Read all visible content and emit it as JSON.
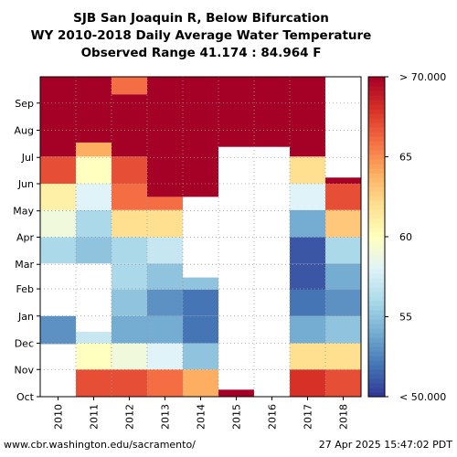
{
  "chart_data": {
    "type": "heatmap",
    "title_lines": [
      "SJB San Joaquin R, Below Bifurcation",
      "WY 2010-2018 Daily Average Water Temperature",
      "Observed Range 41.174 : 84.964 F"
    ],
    "x_categories": [
      "2010",
      "2011",
      "2012",
      "2013",
      "2014",
      "2015",
      "2016",
      "2017",
      "2018"
    ],
    "y_months": [
      "Oct",
      "Nov",
      "Dec",
      "Jan",
      "Feb",
      "Mar",
      "Apr",
      "May",
      "Jun",
      "Jul",
      "Aug",
      "Sep"
    ],
    "colorbar": {
      "min": 50,
      "max": 70,
      "tick_values": [
        55,
        60,
        65
      ],
      "tick_labels": [
        "55",
        "60",
        "65"
      ],
      "min_label": "< 50.000",
      "max_label": "> 70.000",
      "colors": [
        "#313695",
        "#4575b4",
        "#74add1",
        "#abd9e9",
        "#e0f3f8",
        "#ffffbf",
        "#fee090",
        "#fdae61",
        "#f46d43",
        "#d73027",
        "#a50026"
      ]
    },
    "series": [
      {
        "name": "2010",
        "segments": [
          {
            "from_day": 0,
            "to_day": 60,
            "value": null
          },
          {
            "from_day": 60,
            "to_day": 92,
            "value": 53
          },
          {
            "from_day": 92,
            "to_day": 152,
            "value": null
          },
          {
            "from_day": 152,
            "to_day": 182,
            "value": 56
          },
          {
            "from_day": 182,
            "to_day": 213,
            "value": 59
          },
          {
            "from_day": 213,
            "to_day": 243,
            "value": 61
          },
          {
            "from_day": 243,
            "to_day": 274,
            "value": 67
          },
          {
            "from_day": 274,
            "to_day": 365,
            "value": 72
          }
        ]
      },
      {
        "name": "2011",
        "segments": [
          {
            "from_day": 0,
            "to_day": 31,
            "value": 67
          },
          {
            "from_day": 31,
            "to_day": 61,
            "value": 60
          },
          {
            "from_day": 61,
            "to_day": 74,
            "value": 57
          },
          {
            "from_day": 74,
            "to_day": 152,
            "value": null
          },
          {
            "from_day": 152,
            "to_day": 182,
            "value": 55
          },
          {
            "from_day": 182,
            "to_day": 213,
            "value": 56
          },
          {
            "from_day": 213,
            "to_day": 243,
            "value": 58
          },
          {
            "from_day": 243,
            "to_day": 274,
            "value": 60
          },
          {
            "from_day": 274,
            "to_day": 290,
            "value": 64
          },
          {
            "from_day": 290,
            "to_day": 365,
            "value": 72
          }
        ]
      },
      {
        "name": "2012",
        "segments": [
          {
            "from_day": 0,
            "to_day": 31,
            "value": 67
          },
          {
            "from_day": 31,
            "to_day": 61,
            "value": 59
          },
          {
            "from_day": 61,
            "to_day": 92,
            "value": 54
          },
          {
            "from_day": 92,
            "to_day": 122,
            "value": 55
          },
          {
            "from_day": 122,
            "to_day": 152,
            "value": 56
          },
          {
            "from_day": 152,
            "to_day": 182,
            "value": 56
          },
          {
            "from_day": 182,
            "to_day": 213,
            "value": 62
          },
          {
            "from_day": 213,
            "to_day": 243,
            "value": 66
          },
          {
            "from_day": 243,
            "to_day": 274,
            "value": 67
          },
          {
            "from_day": 274,
            "to_day": 345,
            "value": 72
          },
          {
            "from_day": 345,
            "to_day": 365,
            "value": 66
          }
        ]
      },
      {
        "name": "2013",
        "segments": [
          {
            "from_day": 0,
            "to_day": 31,
            "value": 66
          },
          {
            "from_day": 31,
            "to_day": 61,
            "value": 58
          },
          {
            "from_day": 61,
            "to_day": 92,
            "value": 54
          },
          {
            "from_day": 92,
            "to_day": 122,
            "value": 53
          },
          {
            "from_day": 122,
            "to_day": 152,
            "value": 55
          },
          {
            "from_day": 152,
            "to_day": 182,
            "value": 57
          },
          {
            "from_day": 182,
            "to_day": 213,
            "value": 62
          },
          {
            "from_day": 213,
            "to_day": 228,
            "value": 66
          },
          {
            "from_day": 228,
            "to_day": 365,
            "value": 72
          }
        ]
      },
      {
        "name": "2014",
        "segments": [
          {
            "from_day": 0,
            "to_day": 31,
            "value": 64
          },
          {
            "from_day": 31,
            "to_day": 61,
            "value": 55
          },
          {
            "from_day": 61,
            "to_day": 92,
            "value": 52
          },
          {
            "from_day": 92,
            "to_day": 122,
            "value": 52
          },
          {
            "from_day": 122,
            "to_day": 136,
            "value": 55
          },
          {
            "from_day": 136,
            "to_day": 228,
            "value": null
          },
          {
            "from_day": 228,
            "to_day": 243,
            "value": 70
          },
          {
            "from_day": 243,
            "to_day": 365,
            "value": 72
          }
        ]
      },
      {
        "name": "2015",
        "segments": [
          {
            "from_day": 0,
            "to_day": 8,
            "value": 72
          },
          {
            "from_day": 8,
            "to_day": 285,
            "value": null
          },
          {
            "from_day": 285,
            "to_day": 365,
            "value": 72
          }
        ]
      },
      {
        "name": "2016",
        "segments": [
          {
            "from_day": 0,
            "to_day": 285,
            "value": null
          },
          {
            "from_day": 285,
            "to_day": 365,
            "value": 72
          }
        ]
      },
      {
        "name": "2017",
        "segments": [
          {
            "from_day": 0,
            "to_day": 31,
            "value": 68
          },
          {
            "from_day": 31,
            "to_day": 61,
            "value": 62
          },
          {
            "from_day": 61,
            "to_day": 92,
            "value": 54
          },
          {
            "from_day": 92,
            "to_day": 122,
            "value": 52
          },
          {
            "from_day": 122,
            "to_day": 152,
            "value": 51
          },
          {
            "from_day": 152,
            "to_day": 182,
            "value": 51
          },
          {
            "from_day": 182,
            "to_day": 213,
            "value": 54
          },
          {
            "from_day": 213,
            "to_day": 243,
            "value": 58
          },
          {
            "from_day": 243,
            "to_day": 274,
            "value": 62
          },
          {
            "from_day": 274,
            "to_day": 365,
            "value": 72
          }
        ]
      },
      {
        "name": "2018",
        "segments": [
          {
            "from_day": 0,
            "to_day": 31,
            "value": 67
          },
          {
            "from_day": 31,
            "to_day": 61,
            "value": 62
          },
          {
            "from_day": 61,
            "to_day": 92,
            "value": 55
          },
          {
            "from_day": 92,
            "to_day": 122,
            "value": 53
          },
          {
            "from_day": 122,
            "to_day": 152,
            "value": 54
          },
          {
            "from_day": 152,
            "to_day": 182,
            "value": 56
          },
          {
            "from_day": 182,
            "to_day": 213,
            "value": 63
          },
          {
            "from_day": 213,
            "to_day": 243,
            "value": 67
          },
          {
            "from_day": 243,
            "to_day": 250,
            "value": 71
          },
          {
            "from_day": 250,
            "to_day": 365,
            "value": null
          }
        ]
      }
    ],
    "grid": "dotted"
  },
  "footer": {
    "source": "www.cbr.washington.edu/sacramento/",
    "timestamp": "27 Apr 2025 15:47:02 PDT"
  }
}
